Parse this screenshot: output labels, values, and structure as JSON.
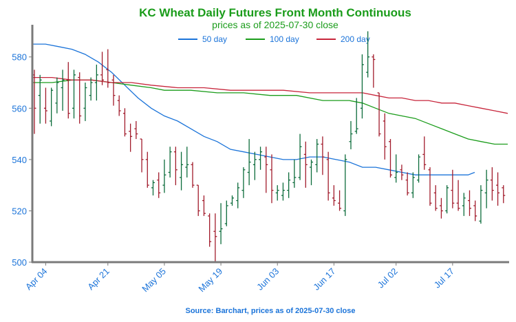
{
  "chart_data": {
    "type": "ohlc",
    "title": "KC Wheat Daily Futures Front Month Continuous",
    "subtitle": "prices as of 2025-07-30 close",
    "source": "Source: Barchart, prices as of 2025-07-30 close",
    "xlabel": "",
    "ylabel": "",
    "ylim": [
      500,
      592
    ],
    "yticks": [
      500,
      520,
      540,
      560,
      580
    ],
    "xticks": [
      "Apr 04",
      "Apr 21",
      "May 05",
      "May 19",
      "Jun 03",
      "Jun 17",
      "Jul 02",
      "Jul 17"
    ],
    "grid": false,
    "legend_position": "top",
    "colors": {
      "title": "#1a9c1a",
      "subtitle": "#1a9c1a",
      "ticks": "#1a73d9",
      "source": "#1a73d9",
      "up": "#0b6b3a",
      "down": "#a11a2a",
      "axis": "#7a7a7a"
    },
    "bars": [
      {
        "date": "Apr 02",
        "open": 573,
        "high": 575,
        "low": 550,
        "close": 560
      },
      {
        "date": "Apr 03",
        "open": 565,
        "high": 573,
        "low": 554,
        "close": 571
      },
      {
        "date": "Apr 04",
        "open": 560,
        "high": 568,
        "low": 554,
        "close": 559
      },
      {
        "date": "Apr 07",
        "open": 555,
        "high": 568,
        "low": 553,
        "close": 567
      },
      {
        "date": "Apr 08",
        "open": 562,
        "high": 572,
        "low": 558,
        "close": 570
      },
      {
        "date": "Apr 09",
        "open": 568,
        "high": 575,
        "low": 559,
        "close": 571
      },
      {
        "date": "Apr 10",
        "open": 571,
        "high": 578,
        "low": 556,
        "close": 558
      },
      {
        "date": "Apr 11",
        "open": 560,
        "high": 575,
        "low": 556,
        "close": 573
      },
      {
        "date": "Apr 14",
        "open": 572,
        "high": 574,
        "low": 554,
        "close": 557
      },
      {
        "date": "Apr 15",
        "open": 560,
        "high": 570,
        "low": 555,
        "close": 568
      },
      {
        "date": "Apr 16",
        "open": 565,
        "high": 572,
        "low": 563,
        "close": 570
      },
      {
        "date": "Apr 17",
        "open": 570,
        "high": 577,
        "low": 563,
        "close": 573
      },
      {
        "date": "Apr 18",
        "open": 573,
        "high": 582,
        "low": 569,
        "close": 571
      },
      {
        "date": "Apr 21",
        "open": 575,
        "high": 583,
        "low": 568,
        "close": 570
      },
      {
        "date": "Apr 22",
        "open": 571,
        "high": 573,
        "low": 561,
        "close": 565
      },
      {
        "date": "Apr 23",
        "open": 563,
        "high": 565,
        "low": 557,
        "close": 559
      },
      {
        "date": "Apr 24",
        "open": 558,
        "high": 560,
        "low": 549,
        "close": 550
      },
      {
        "date": "Apr 25",
        "open": 551,
        "high": 554,
        "low": 543,
        "close": 549
      },
      {
        "date": "Apr 28",
        "open": 552,
        "high": 555,
        "low": 548,
        "close": 550
      },
      {
        "date": "Apr 29",
        "open": 548,
        "high": 548,
        "low": 535,
        "close": 540
      },
      {
        "date": "Apr 30",
        "open": 540,
        "high": 543,
        "low": 529,
        "close": 530
      },
      {
        "date": "May 01",
        "open": 529,
        "high": 532,
        "low": 526,
        "close": 531
      },
      {
        "date": "May 02",
        "open": 532,
        "high": 535,
        "low": 525,
        "close": 527
      },
      {
        "date": "May 05",
        "open": 530,
        "high": 540,
        "low": 527,
        "close": 534
      },
      {
        "date": "May 06",
        "open": 535,
        "high": 545,
        "low": 533,
        "close": 543
      },
      {
        "date": "May 07",
        "open": 543,
        "high": 545,
        "low": 530,
        "close": 536
      },
      {
        "date": "May 08",
        "open": 533,
        "high": 543,
        "low": 528,
        "close": 538
      },
      {
        "date": "May 09",
        "open": 537,
        "high": 545,
        "low": 533,
        "close": 538
      },
      {
        "date": "May 12",
        "open": 538,
        "high": 539,
        "low": 529,
        "close": 530
      },
      {
        "date": "May 13",
        "open": 530,
        "high": 530,
        "low": 518,
        "close": 520
      },
      {
        "date": "May 14",
        "open": 524,
        "high": 526,
        "low": 518,
        "close": 519
      },
      {
        "date": "May 15",
        "open": 518,
        "high": 519,
        "low": 506,
        "close": 508
      },
      {
        "date": "May 16",
        "open": 512,
        "high": 519,
        "low": 500,
        "close": 510
      },
      {
        "date": "May 19",
        "open": 512,
        "high": 523,
        "low": 507,
        "close": 513
      },
      {
        "date": "May 20",
        "open": 515,
        "high": 524,
        "low": 514,
        "close": 522
      },
      {
        "date": "May 21",
        "open": 523,
        "high": 526,
        "low": 522,
        "close": 525
      },
      {
        "date": "May 22",
        "open": 524,
        "high": 531,
        "low": 521,
        "close": 529
      },
      {
        "date": "May 23",
        "open": 528,
        "high": 537,
        "low": 525,
        "close": 536
      },
      {
        "date": "May 27",
        "open": 535,
        "high": 548,
        "low": 530,
        "close": 539
      },
      {
        "date": "May 28",
        "open": 538,
        "high": 543,
        "low": 532,
        "close": 540
      },
      {
        "date": "May 29",
        "open": 540,
        "high": 545,
        "low": 536,
        "close": 543
      },
      {
        "date": "May 30",
        "open": 541,
        "high": 545,
        "low": 527,
        "close": 538
      },
      {
        "date": "Jun 02",
        "open": 536,
        "high": 542,
        "low": 523,
        "close": 528
      },
      {
        "date": "Jun 03",
        "open": 527,
        "high": 530,
        "low": 524,
        "close": 528
      },
      {
        "date": "Jun 04",
        "open": 526,
        "high": 531,
        "low": 524,
        "close": 528
      },
      {
        "date": "Jun 05",
        "open": 528,
        "high": 535,
        "low": 525,
        "close": 532
      },
      {
        "date": "Jun 06",
        "open": 531,
        "high": 540,
        "low": 529,
        "close": 533
      },
      {
        "date": "Jun 09",
        "open": 533,
        "high": 550,
        "low": 532,
        "close": 545
      },
      {
        "date": "Jun 10",
        "open": 542,
        "high": 547,
        "low": 529,
        "close": 538
      },
      {
        "date": "Jun 11",
        "open": 537,
        "high": 540,
        "low": 530,
        "close": 539
      },
      {
        "date": "Jun 12",
        "open": 538,
        "high": 548,
        "low": 535,
        "close": 546
      },
      {
        "date": "Jun 13",
        "open": 546,
        "high": 549,
        "low": 534,
        "close": 541
      },
      {
        "date": "Jun 16",
        "open": 540,
        "high": 543,
        "low": 524,
        "close": 527
      },
      {
        "date": "Jun 17",
        "open": 525,
        "high": 530,
        "low": 522,
        "close": 524
      },
      {
        "date": "Jun 18",
        "open": 523,
        "high": 528,
        "low": 520,
        "close": 521
      },
      {
        "date": "Jun 19",
        "open": 520,
        "high": 542,
        "low": 518,
        "close": 540
      },
      {
        "date": "Jun 20",
        "open": 547,
        "high": 555,
        "low": 544,
        "close": 550
      },
      {
        "date": "Jun 23",
        "open": 551,
        "high": 564,
        "low": 550,
        "close": 552
      },
      {
        "date": "Jun 24",
        "open": 560,
        "high": 581,
        "low": 556,
        "close": 577
      },
      {
        "date": "Jun 25",
        "open": 574,
        "high": 590,
        "low": 572,
        "close": 580
      },
      {
        "date": "Jun 26",
        "open": 580,
        "high": 581,
        "low": 568,
        "close": 579
      },
      {
        "date": "Jun 27",
        "open": 566,
        "high": 566,
        "low": 549,
        "close": 550
      },
      {
        "date": "Jun 30",
        "open": 555,
        "high": 558,
        "low": 540,
        "close": 545
      },
      {
        "date": "Jul 01",
        "open": 547,
        "high": 548,
        "low": 533,
        "close": 534
      },
      {
        "date": "Jul 02",
        "open": 533,
        "high": 542,
        "low": 531,
        "close": 535
      },
      {
        "date": "Jul 03",
        "open": 536,
        "high": 538,
        "low": 532,
        "close": 534
      },
      {
        "date": "Jul 07",
        "open": 532,
        "high": 535,
        "low": 526,
        "close": 527
      },
      {
        "date": "Jul 08",
        "open": 527,
        "high": 535,
        "low": 525,
        "close": 533
      },
      {
        "date": "Jul 09",
        "open": 532,
        "high": 542,
        "low": 531,
        "close": 541
      },
      {
        "date": "Jul 10",
        "open": 542,
        "high": 549,
        "low": 536,
        "close": 538
      },
      {
        "date": "Jul 11",
        "open": 536,
        "high": 537,
        "low": 522,
        "close": 523
      },
      {
        "date": "Jul 14",
        "open": 527,
        "high": 530,
        "low": 520,
        "close": 521
      },
      {
        "date": "Jul 15",
        "open": 522,
        "high": 525,
        "low": 517,
        "close": 520
      },
      {
        "date": "Jul 16",
        "open": 520,
        "high": 530,
        "low": 519,
        "close": 529
      },
      {
        "date": "Jul 17",
        "open": 528,
        "high": 536,
        "low": 521,
        "close": 523
      },
      {
        "date": "Jul 18",
        "open": 523,
        "high": 532,
        "low": 520,
        "close": 521
      },
      {
        "date": "Jul 21",
        "open": 522,
        "high": 527,
        "low": 518,
        "close": 525
      },
      {
        "date": "Jul 22",
        "open": 524,
        "high": 528,
        "low": 518,
        "close": 521
      },
      {
        "date": "Jul 23",
        "open": 522,
        "high": 524,
        "low": 516,
        "close": 518
      },
      {
        "date": "Jul 24",
        "open": 516,
        "high": 530,
        "low": 515,
        "close": 528
      },
      {
        "date": "Jul 25",
        "open": 527,
        "high": 536,
        "low": 521,
        "close": 532
      },
      {
        "date": "Jul 28",
        "open": 532,
        "high": 537,
        "low": 524,
        "close": 528
      },
      {
        "date": "Jul 29",
        "open": 530,
        "high": 535,
        "low": 522,
        "close": 527
      },
      {
        "date": "Jul 30",
        "open": 529,
        "high": 530,
        "low": 523,
        "close": 526
      }
    ],
    "series": [
      {
        "name": "50 day",
        "color": "#1a73d9",
        "values": [
          [
            0,
            585
          ],
          [
            4,
            585
          ],
          [
            8,
            584
          ],
          [
            12,
            583
          ],
          [
            16,
            581
          ],
          [
            20,
            578
          ],
          [
            24,
            574
          ],
          [
            28,
            569
          ],
          [
            32,
            564
          ],
          [
            36,
            560
          ],
          [
            40,
            557
          ],
          [
            44,
            555
          ],
          [
            48,
            552
          ],
          [
            52,
            549
          ],
          [
            56,
            547
          ],
          [
            60,
            544
          ],
          [
            64,
            543
          ],
          [
            68,
            542
          ],
          [
            72,
            541
          ],
          [
            76,
            540
          ],
          [
            80,
            540
          ],
          [
            84,
            541
          ],
          [
            88,
            541
          ],
          [
            92,
            540
          ],
          [
            96,
            539
          ],
          [
            100,
            537
          ],
          [
            104,
            537
          ],
          [
            108,
            536
          ],
          [
            112,
            535
          ],
          [
            116,
            534
          ],
          [
            120,
            534
          ],
          [
            124,
            534
          ],
          [
            128,
            534
          ],
          [
            132,
            534
          ],
          [
            134,
            535
          ]
        ]
      },
      {
        "name": "100 day",
        "color": "#1a9c1a",
        "values": [
          [
            0,
            570
          ],
          [
            6,
            570
          ],
          [
            12,
            571
          ],
          [
            18,
            571
          ],
          [
            24,
            570
          ],
          [
            30,
            569
          ],
          [
            36,
            568
          ],
          [
            40,
            567
          ],
          [
            48,
            567
          ],
          [
            56,
            566
          ],
          [
            64,
            566
          ],
          [
            72,
            565
          ],
          [
            80,
            565
          ],
          [
            88,
            563
          ],
          [
            92,
            563
          ],
          [
            96,
            563
          ],
          [
            100,
            562
          ],
          [
            104,
            560
          ],
          [
            108,
            558
          ],
          [
            112,
            557
          ],
          [
            116,
            556
          ],
          [
            120,
            554
          ],
          [
            124,
            552
          ],
          [
            128,
            550
          ],
          [
            132,
            548
          ],
          [
            136,
            547
          ],
          [
            140,
            546
          ],
          [
            144,
            546
          ]
        ]
      },
      {
        "name": "200 day",
        "color": "#c7243a",
        "values": [
          [
            0,
            572
          ],
          [
            6,
            572
          ],
          [
            12,
            571
          ],
          [
            18,
            571
          ],
          [
            24,
            570
          ],
          [
            30,
            570
          ],
          [
            36,
            569
          ],
          [
            44,
            568
          ],
          [
            52,
            568
          ],
          [
            60,
            567
          ],
          [
            68,
            567
          ],
          [
            76,
            567
          ],
          [
            84,
            566
          ],
          [
            92,
            566
          ],
          [
            100,
            566
          ],
          [
            104,
            565
          ],
          [
            108,
            564
          ],
          [
            112,
            564
          ],
          [
            116,
            563
          ],
          [
            120,
            563
          ],
          [
            124,
            562
          ],
          [
            128,
            562
          ],
          [
            132,
            561
          ],
          [
            136,
            560
          ],
          [
            140,
            559
          ],
          [
            144,
            558
          ]
        ]
      }
    ]
  }
}
